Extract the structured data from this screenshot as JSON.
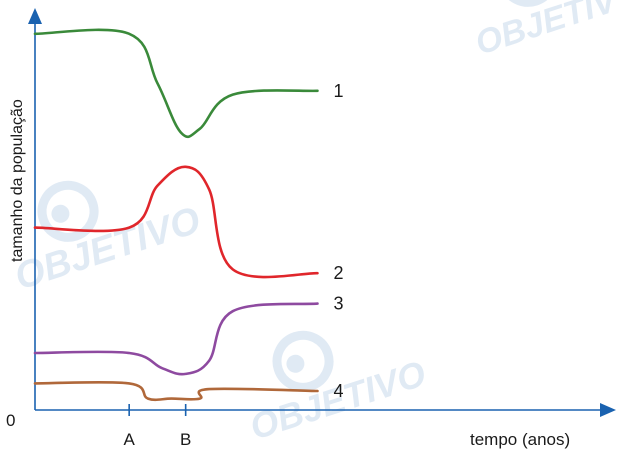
{
  "chart_data": {
    "type": "line",
    "title": "",
    "ylabel": "tamanho da população",
    "xlabel": "tempo (anos)",
    "origin_label": "0",
    "xlim": [
      0,
      6
    ],
    "ylim": [
      0,
      10
    ],
    "grid": false,
    "x_ticks": [
      {
        "x": 1.0,
        "label": "A"
      },
      {
        "x": 1.6,
        "label": "B"
      }
    ],
    "series": [
      {
        "name": "1",
        "color": "#3a8a3a",
        "points": [
          [
            0,
            9.9
          ],
          [
            1.0,
            9.9
          ],
          [
            1.3,
            8.6
          ],
          [
            1.55,
            7.3
          ],
          [
            1.75,
            7.4
          ],
          [
            2.1,
            8.3
          ],
          [
            3.0,
            8.4
          ]
        ]
      },
      {
        "name": "2",
        "color": "#e0262b",
        "points": [
          [
            0,
            4.8
          ],
          [
            1.0,
            4.8
          ],
          [
            1.3,
            5.9
          ],
          [
            1.6,
            6.4
          ],
          [
            1.85,
            5.8
          ],
          [
            2.1,
            3.7
          ],
          [
            3.0,
            3.6
          ]
        ]
      },
      {
        "name": "3",
        "color": "#8e4aa0",
        "points": [
          [
            0,
            1.5
          ],
          [
            1.0,
            1.5
          ],
          [
            1.35,
            1.1
          ],
          [
            1.6,
            0.95
          ],
          [
            1.85,
            1.3
          ],
          [
            2.1,
            2.6
          ],
          [
            3.0,
            2.8
          ]
        ]
      },
      {
        "name": "4",
        "color": "#b0683a",
        "points": [
          [
            0,
            0.7
          ],
          [
            1.0,
            0.7
          ],
          [
            1.2,
            0.3
          ],
          [
            1.45,
            0.3
          ],
          [
            1.75,
            0.3
          ],
          [
            1.85,
            0.55
          ],
          [
            3.0,
            0.5
          ]
        ]
      }
    ],
    "watermark": "OBJETIVO",
    "axis_color": "#1a62b0"
  }
}
